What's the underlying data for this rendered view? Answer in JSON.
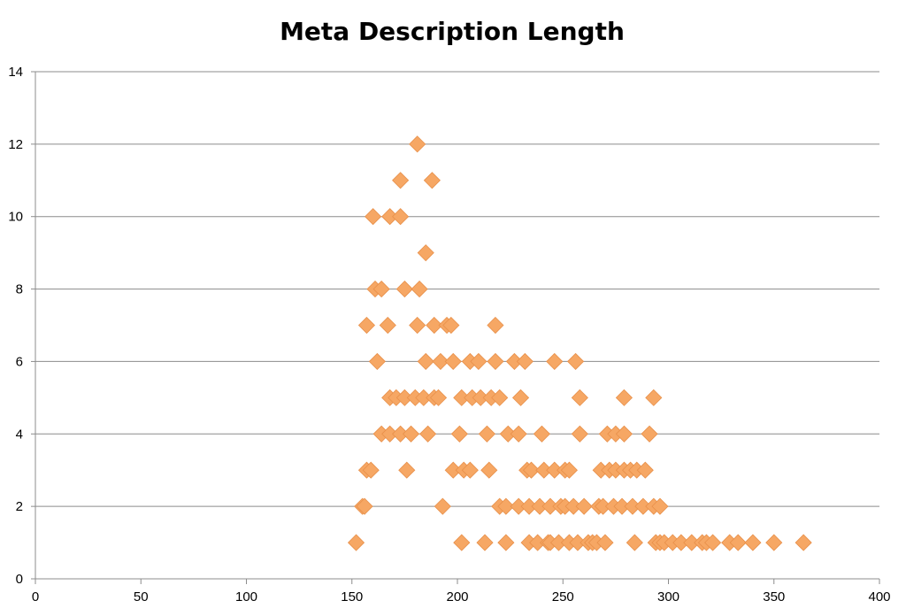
{
  "chart_data": {
    "type": "scatter",
    "title": "Meta Description Length",
    "xlabel": "",
    "ylabel": "",
    "xlim": [
      0,
      400
    ],
    "ylim": [
      0,
      14
    ],
    "xticks": [
      "0",
      "50",
      "100",
      "150",
      "200",
      "250",
      "300",
      "350",
      "400"
    ],
    "yticks": [
      "0",
      "2",
      "4",
      "6",
      "8",
      "10",
      "12",
      "14"
    ],
    "grid": "horizontal",
    "legend": "none",
    "marker": "diamond",
    "color": "#f6a764",
    "points": [
      [
        152,
        1
      ],
      [
        202,
        1
      ],
      [
        213,
        1
      ],
      [
        223,
        1
      ],
      [
        234,
        1
      ],
      [
        238,
        1
      ],
      [
        243,
        1
      ],
      [
        244,
        1
      ],
      [
        248,
        1
      ],
      [
        253,
        1
      ],
      [
        257,
        1
      ],
      [
        262,
        1
      ],
      [
        264,
        1
      ],
      [
        266,
        1
      ],
      [
        270,
        1
      ],
      [
        284,
        1
      ],
      [
        294,
        1
      ],
      [
        296,
        1
      ],
      [
        298,
        1
      ],
      [
        302,
        1
      ],
      [
        306,
        1
      ],
      [
        311,
        1
      ],
      [
        316,
        1
      ],
      [
        318,
        1
      ],
      [
        321,
        1
      ],
      [
        329,
        1
      ],
      [
        333,
        1
      ],
      [
        340,
        1
      ],
      [
        350,
        1
      ],
      [
        364,
        1
      ],
      [
        155,
        2
      ],
      [
        156,
        2
      ],
      [
        193,
        2
      ],
      [
        220,
        2
      ],
      [
        223,
        2
      ],
      [
        229,
        2
      ],
      [
        234,
        2
      ],
      [
        239,
        2
      ],
      [
        244,
        2
      ],
      [
        249,
        2
      ],
      [
        251,
        2
      ],
      [
        255,
        2
      ],
      [
        260,
        2
      ],
      [
        267,
        2
      ],
      [
        269,
        2
      ],
      [
        274,
        2
      ],
      [
        278,
        2
      ],
      [
        283,
        2
      ],
      [
        288,
        2
      ],
      [
        293,
        2
      ],
      [
        296,
        2
      ],
      [
        157,
        3
      ],
      [
        159,
        3
      ],
      [
        176,
        3
      ],
      [
        198,
        3
      ],
      [
        203,
        3
      ],
      [
        206,
        3
      ],
      [
        215,
        3
      ],
      [
        233,
        3
      ],
      [
        235,
        3
      ],
      [
        241,
        3
      ],
      [
        246,
        3
      ],
      [
        251,
        3
      ],
      [
        253,
        3
      ],
      [
        268,
        3
      ],
      [
        272,
        3
      ],
      [
        275,
        3
      ],
      [
        279,
        3
      ],
      [
        282,
        3
      ],
      [
        285,
        3
      ],
      [
        289,
        3
      ],
      [
        164,
        4
      ],
      [
        168,
        4
      ],
      [
        173,
        4
      ],
      [
        178,
        4
      ],
      [
        186,
        4
      ],
      [
        201,
        4
      ],
      [
        214,
        4
      ],
      [
        224,
        4
      ],
      [
        229,
        4
      ],
      [
        240,
        4
      ],
      [
        258,
        4
      ],
      [
        271,
        4
      ],
      [
        275,
        4
      ],
      [
        279,
        4
      ],
      [
        291,
        4
      ],
      [
        168,
        5
      ],
      [
        171,
        5
      ],
      [
        175,
        5
      ],
      [
        180,
        5
      ],
      [
        184,
        5
      ],
      [
        189,
        5
      ],
      [
        191,
        5
      ],
      [
        202,
        5
      ],
      [
        207,
        5
      ],
      [
        211,
        5
      ],
      [
        216,
        5
      ],
      [
        220,
        5
      ],
      [
        230,
        5
      ],
      [
        258,
        5
      ],
      [
        279,
        5
      ],
      [
        293,
        5
      ],
      [
        162,
        6
      ],
      [
        185,
        6
      ],
      [
        192,
        6
      ],
      [
        198,
        6
      ],
      [
        206,
        6
      ],
      [
        210,
        6
      ],
      [
        218,
        6
      ],
      [
        227,
        6
      ],
      [
        232,
        6
      ],
      [
        246,
        6
      ],
      [
        256,
        6
      ],
      [
        157,
        7
      ],
      [
        167,
        7
      ],
      [
        181,
        7
      ],
      [
        189,
        7
      ],
      [
        195,
        7
      ],
      [
        197,
        7
      ],
      [
        218,
        7
      ],
      [
        161,
        8
      ],
      [
        164,
        8
      ],
      [
        175,
        8
      ],
      [
        182,
        8
      ],
      [
        185,
        9
      ],
      [
        160,
        10
      ],
      [
        168,
        10
      ],
      [
        173,
        10
      ],
      [
        173,
        11
      ],
      [
        188,
        11
      ],
      [
        181,
        12
      ]
    ]
  }
}
